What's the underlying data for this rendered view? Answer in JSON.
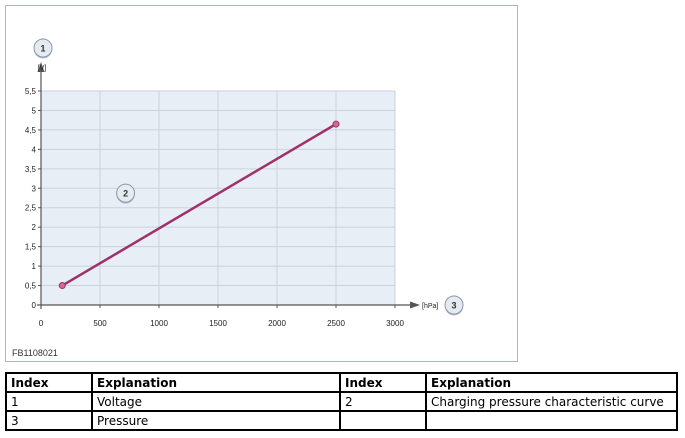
{
  "figure_code": "FB1108021",
  "chart_data": {
    "type": "line",
    "ylabel": "[V]",
    "xlabel": "[hPa]",
    "x_ticks": [
      0,
      500,
      1000,
      1500,
      2000,
      2500,
      3000
    ],
    "x_tick_labels": [
      "0",
      "500",
      "1000",
      "1500",
      "2000",
      "2500",
      "3000"
    ],
    "y_ticks": [
      0,
      0.5,
      1,
      1.5,
      2,
      2.5,
      3,
      3.5,
      4,
      4.5,
      5,
      5.5
    ],
    "y_tick_labels": [
      "0",
      "0,5",
      "1",
      "1,5",
      "2",
      "2,5",
      "3",
      "3,5",
      "4",
      "4,5",
      "5",
      "5,5"
    ],
    "xlim": [
      0,
      3000
    ],
    "ylim": [
      0,
      5.5
    ],
    "grid": true,
    "series": [
      {
        "x": [
          180,
          2500
        ],
        "y": [
          0.5,
          4.65
        ]
      }
    ],
    "callouts": [
      {
        "label": "1",
        "target": "y-axis"
      },
      {
        "label": "2",
        "target": "curve",
        "at": [
          1310,
          2.9
        ]
      },
      {
        "label": "3",
        "target": "x-axis"
      }
    ],
    "colors": {
      "line": "#a0306a",
      "grid_bg": "#e8eef5",
      "grid_line": "#c8d2de"
    }
  },
  "legend_table": {
    "headers": [
      "Index",
      "Explanation",
      "Index",
      "Explanation"
    ],
    "rows": [
      [
        "1",
        "Voltage",
        "2",
        "Charging pressure characteristic curve"
      ],
      [
        "3",
        "Pressure",
        "",
        ""
      ]
    ]
  }
}
